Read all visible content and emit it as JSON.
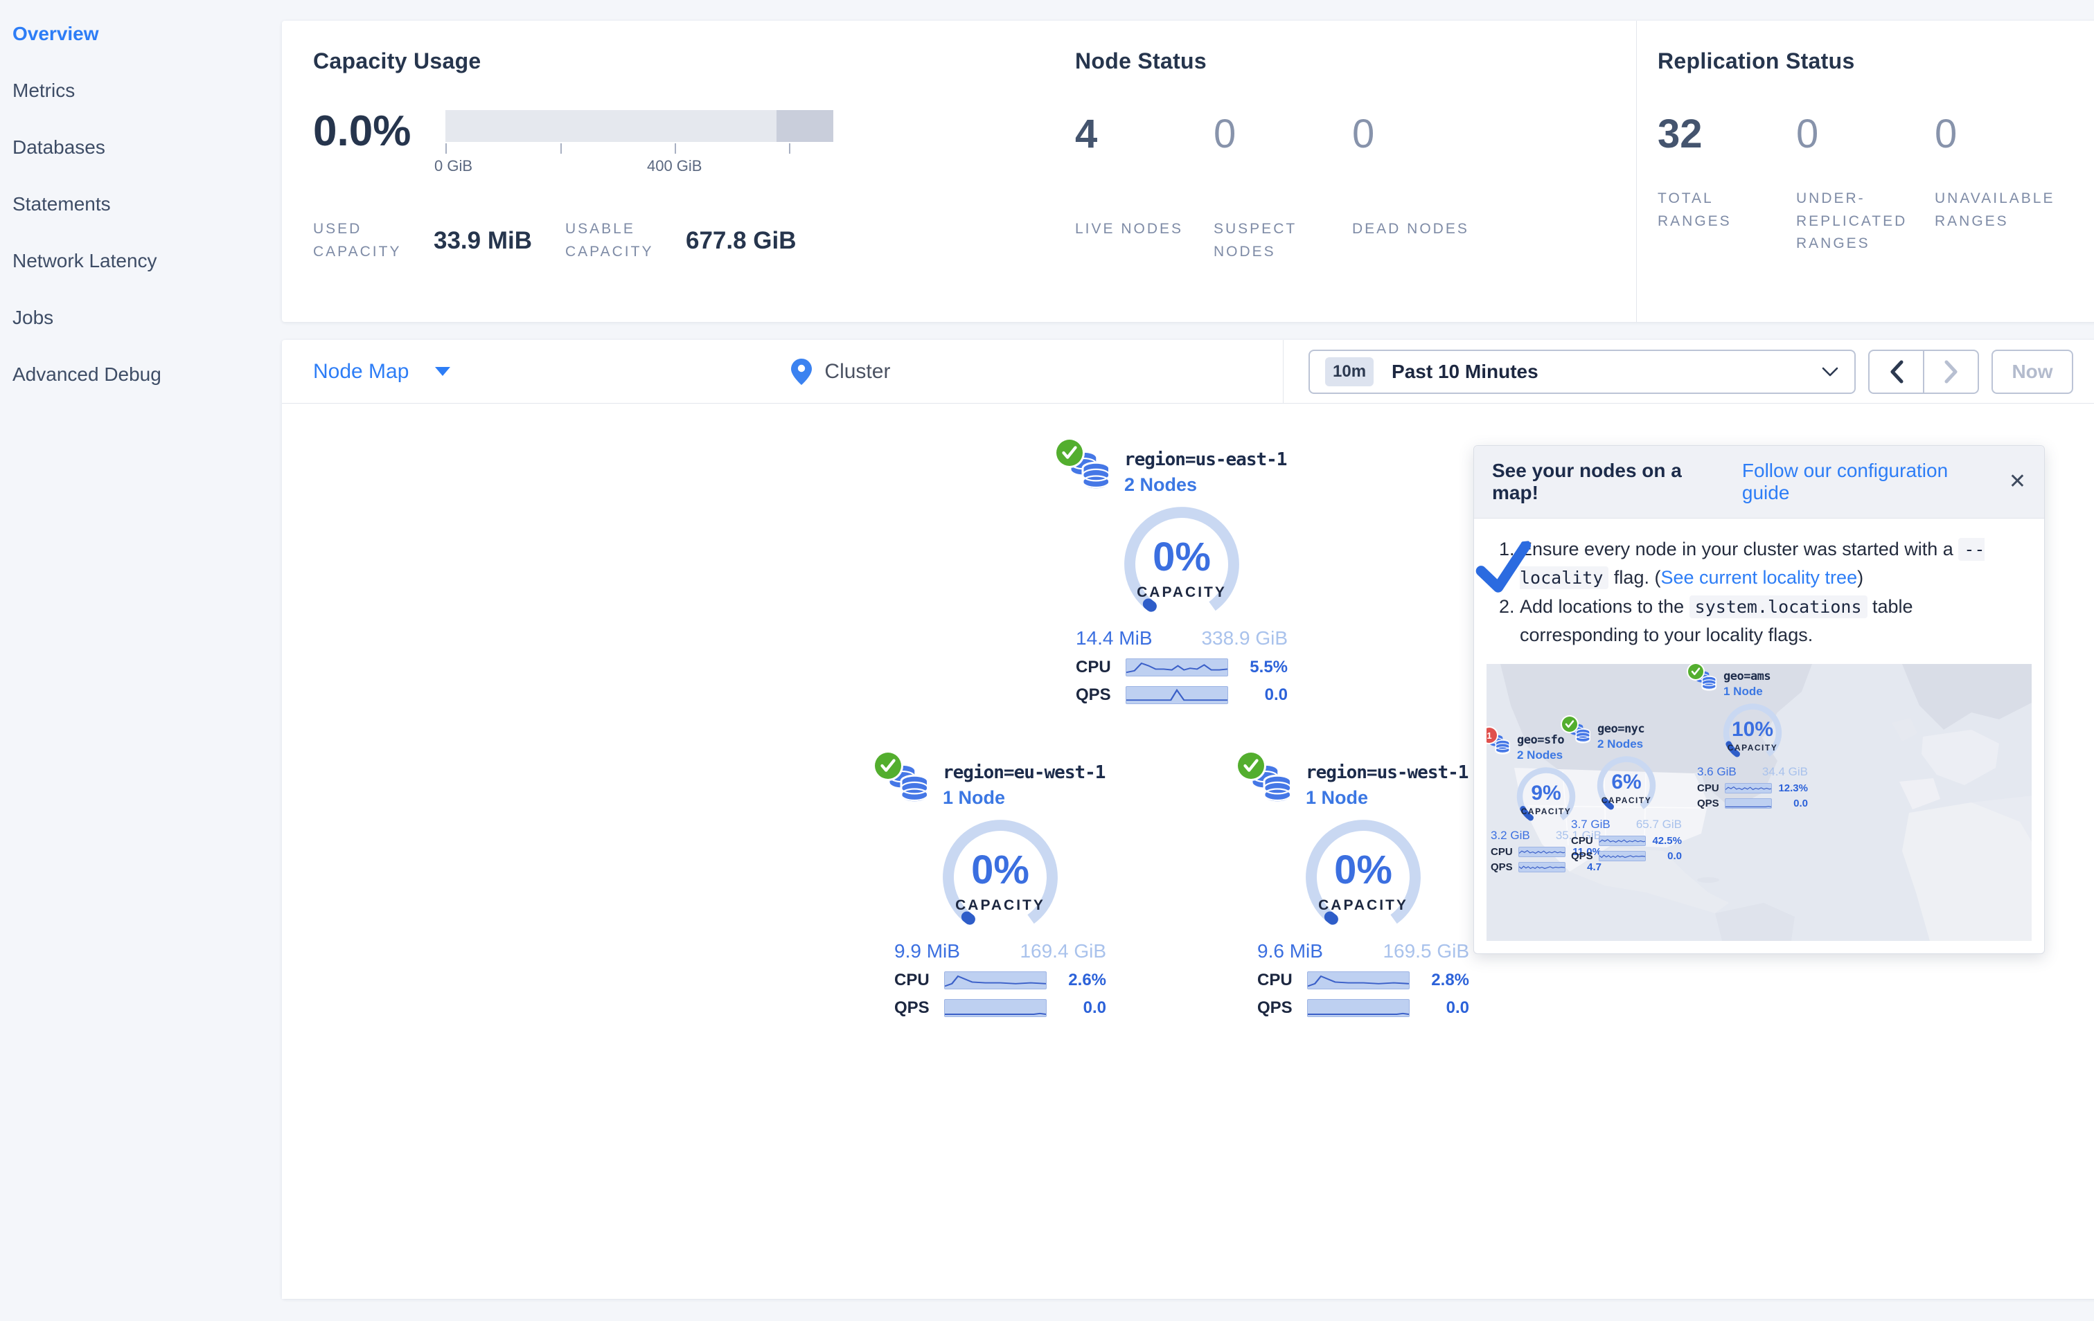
{
  "colors": {
    "accent": "#2d7df6",
    "healthy_green": "#53ae2e",
    "error_red": "#e0504d",
    "gauge_blue": "#3b6fe0"
  },
  "sidebar": {
    "items": [
      {
        "label": "Overview",
        "active": true
      },
      {
        "label": "Metrics",
        "active": false
      },
      {
        "label": "Databases",
        "active": false
      },
      {
        "label": "Statements",
        "active": false
      },
      {
        "label": "Network Latency",
        "active": false
      },
      {
        "label": "Jobs",
        "active": false
      },
      {
        "label": "Advanced Debug",
        "active": false
      }
    ]
  },
  "summary": {
    "capacity": {
      "title": "Capacity Usage",
      "percent": "0.0%",
      "tick0": "0 GiB",
      "tick1": "400 GiB",
      "used_label": "USED CAPACITY",
      "used_value": "33.9 MiB",
      "usable_label": "USABLE CAPACITY",
      "usable_value": "677.8 GiB"
    },
    "nodes": {
      "title": "Node Status",
      "stats": [
        {
          "value": "4",
          "label": "LIVE NODES"
        },
        {
          "value": "0",
          "label": "SUSPECT NODES"
        },
        {
          "value": "0",
          "label": "DEAD NODES"
        }
      ]
    },
    "replication": {
      "title": "Replication Status",
      "stats": [
        {
          "value": "32",
          "label": "TOTAL RANGES"
        },
        {
          "value": "0",
          "label": "UNDER-REPLICATED RANGES"
        },
        {
          "value": "0",
          "label": "UNAVAILABLE RANGES"
        }
      ]
    }
  },
  "toolbar": {
    "view_label": "Node Map",
    "breadcrumb": "Cluster",
    "time_badge": "10m",
    "time_label": "Past 10 Minutes",
    "now_label": "Now"
  },
  "map": {
    "capacity_word": "CAPACITY",
    "cpu_label": "CPU",
    "qps_label": "QPS",
    "regions": [
      {
        "title": "region=us-east-1",
        "nodes_link": "2 Nodes",
        "status": "healthy",
        "capacity_percent": 0,
        "capacity_label": "0%",
        "used": "14.4 MiB",
        "total": "338.9 GiB",
        "cpu": "5.5%",
        "qps": "0.0"
      },
      {
        "title": "region=eu-west-1",
        "nodes_link": "1 Node",
        "status": "healthy",
        "capacity_percent": 0,
        "capacity_label": "0%",
        "used": "9.9 MiB",
        "total": "169.4 GiB",
        "cpu": "2.6%",
        "qps": "0.0"
      },
      {
        "title": "region=us-west-1",
        "nodes_link": "1 Node",
        "status": "healthy",
        "capacity_percent": 0,
        "capacity_label": "0%",
        "used": "9.6 MiB",
        "total": "169.5 GiB",
        "cpu": "2.8%",
        "qps": "0.0"
      }
    ]
  },
  "callout": {
    "title": "See your nodes on a map!",
    "link": "Follow our configuration guide",
    "close": "✕",
    "step1_pre": "Ensure every node in your cluster was started with a ",
    "step1_code": "--locality",
    "step1_mid": " flag. (",
    "step1_link": "See current locality tree",
    "step1_suf": ")",
    "step2_pre": "Add locations to the ",
    "step2_code": "system.locations",
    "step2_suf": " table corresponding to your locality flags.",
    "map_nodes": [
      {
        "title": "geo=sfo",
        "nodes_link": "2 Nodes",
        "status": "error",
        "badge": "1",
        "capacity_percent": 9,
        "capacity_label": "9%",
        "used": "3.2 GiB",
        "total": "35.1 GiB",
        "cpu": "11.0%",
        "qps": "4.7"
      },
      {
        "title": "geo=nyc",
        "nodes_link": "2 Nodes",
        "status": "healthy",
        "capacity_percent": 6,
        "capacity_label": "6%",
        "used": "3.7 GiB",
        "total": "65.7 GiB",
        "cpu": "42.5%",
        "qps": "0.0"
      },
      {
        "title": "geo=ams",
        "nodes_link": "1 Node",
        "status": "healthy",
        "capacity_percent": 10,
        "capacity_label": "10%",
        "used": "3.6 GiB",
        "total": "34.4 GiB",
        "cpu": "12.3%",
        "qps": "0.0"
      }
    ]
  }
}
